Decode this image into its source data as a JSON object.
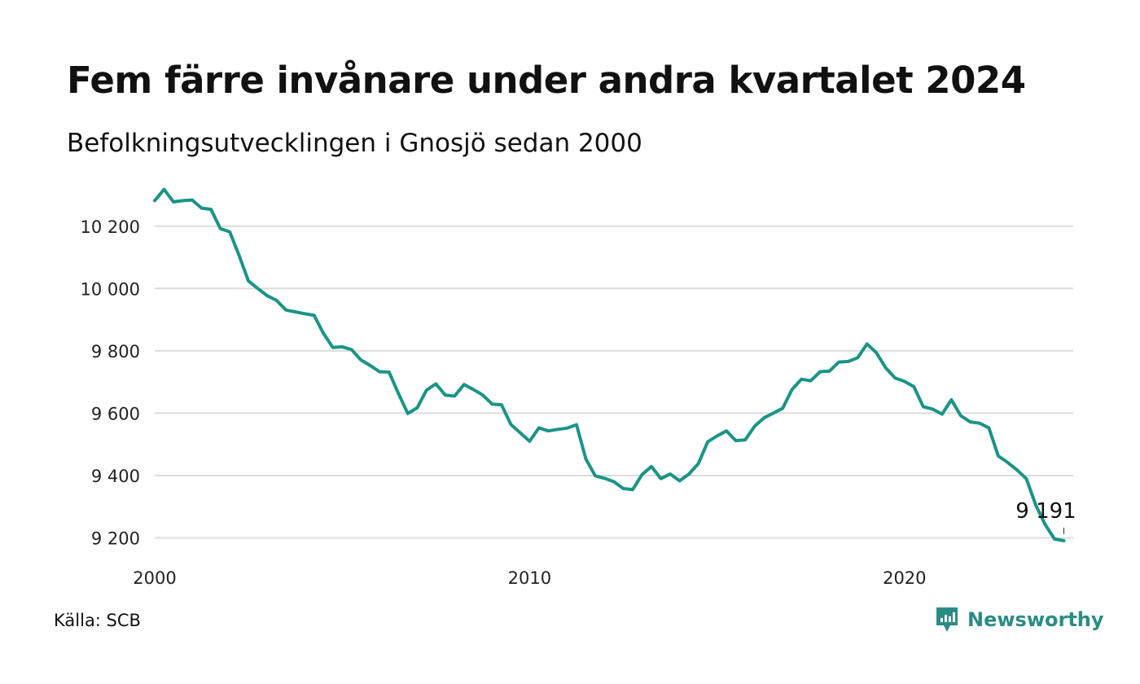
{
  "title": "Fem färre invånare under andra kvartalet 2024",
  "subtitle": "Befolkningsutvecklingen i Gnosjö sedan 2000",
  "source": "Källa: SCB",
  "brand": {
    "name": "Newsworthy",
    "icon": "newsworthy-logo-icon",
    "color": "#2a8c85"
  },
  "chart_data": {
    "type": "line",
    "title": "Fem färre invånare under andra kvartalet 2024",
    "subtitle": "Befolkningsutvecklingen i Gnosjö sedan 2000",
    "xlabel": "",
    "ylabel": "",
    "xlim": [
      2000,
      2024.5
    ],
    "ylim": [
      9170,
      10330
    ],
    "x_ticks": [
      2000,
      2010,
      2020
    ],
    "x_tick_labels": [
      "2000",
      "2010",
      "2020"
    ],
    "y_ticks": [
      9200,
      9400,
      9600,
      9800,
      10000,
      10200
    ],
    "y_tick_labels": [
      "9 200",
      "9 400",
      "9 600",
      "9 800",
      "10 000",
      "10 200"
    ],
    "grid": true,
    "line_color": "#1a9487",
    "end_label": "9 191",
    "series": [
      {
        "x": [
          "2000K1",
          "2000K2",
          "2000K3",
          "2000K4",
          "2001K1",
          "2001K2",
          "2001K3",
          "2001K4",
          "2002K1",
          "2002K2",
          "2002K3",
          "2002K4",
          "2003K1",
          "2003K2",
          "2003K3",
          "2003K4",
          "2004K1",
          "2004K2",
          "2004K3",
          "2004K4",
          "2005K1",
          "2005K2",
          "2005K3",
          "2005K4",
          "2006K1",
          "2006K2",
          "2006K3",
          "2006K4",
          "2007K1",
          "2007K2",
          "2007K3",
          "2007K4",
          "2008K1",
          "2008K2",
          "2008K3",
          "2008K4",
          "2009K1",
          "2009K2",
          "2009K3",
          "2009K4",
          "2010K1",
          "2010K2",
          "2010K3",
          "2010K4",
          "2011K1",
          "2011K2",
          "2011K3",
          "2011K4",
          "2012K1",
          "2012K2",
          "2012K3",
          "2012K4",
          "2013K1",
          "2013K2",
          "2013K3",
          "2013K4",
          "2014K1",
          "2014K2",
          "2014K3",
          "2014K4",
          "2015K1",
          "2015K2",
          "2015K3",
          "2015K4",
          "2016K1",
          "2016K2",
          "2016K3",
          "2016K4",
          "2017K1",
          "2017K2",
          "2017K3",
          "2017K4",
          "2018K1",
          "2018K2",
          "2018K3",
          "2018K4",
          "2019K1",
          "2019K2",
          "2019K3",
          "2019K4",
          "2020K1",
          "2020K2",
          "2020K3",
          "2020K4",
          "2021K1",
          "2021K2",
          "2021K3",
          "2021K4",
          "2022K1",
          "2022K2",
          "2022K3",
          "2022K4",
          "2023K1",
          "2023K2",
          "2023K3",
          "2023K4",
          "2024K1",
          "2024K2"
        ],
        "values": [
          10282,
          10318,
          10278,
          10282,
          10284,
          10258,
          10254,
          10192,
          10182,
          10106,
          10024,
          10000,
          9977,
          9962,
          9931,
          9925,
          9919,
          9914,
          9856,
          9811,
          9813,
          9804,
          9771,
          9753,
          9733,
          9732,
          9663,
          9599,
          9617,
          9674,
          9694,
          9658,
          9655,
          9692,
          9676,
          9658,
          9629,
          9627,
          9564,
          9537,
          9510,
          9553,
          9543,
          9548,
          9552,
          9563,
          9453,
          9399,
          9391,
          9380,
          9358,
          9355,
          9403,
          9429,
          9390,
          9405,
          9383,
          9405,
          9438,
          9508,
          9527,
          9543,
          9512,
          9514,
          9558,
          9585,
          9600,
          9616,
          9676,
          9709,
          9704,
          9733,
          9735,
          9764,
          9766,
          9778,
          9822,
          9794,
          9745,
          9713,
          9702,
          9685,
          9621,
          9613,
          9597,
          9643,
          9592,
          9572,
          9568,
          9553,
          9463,
          9442,
          9418,
          9390,
          9305,
          9243,
          9196,
          9191
        ]
      }
    ]
  }
}
